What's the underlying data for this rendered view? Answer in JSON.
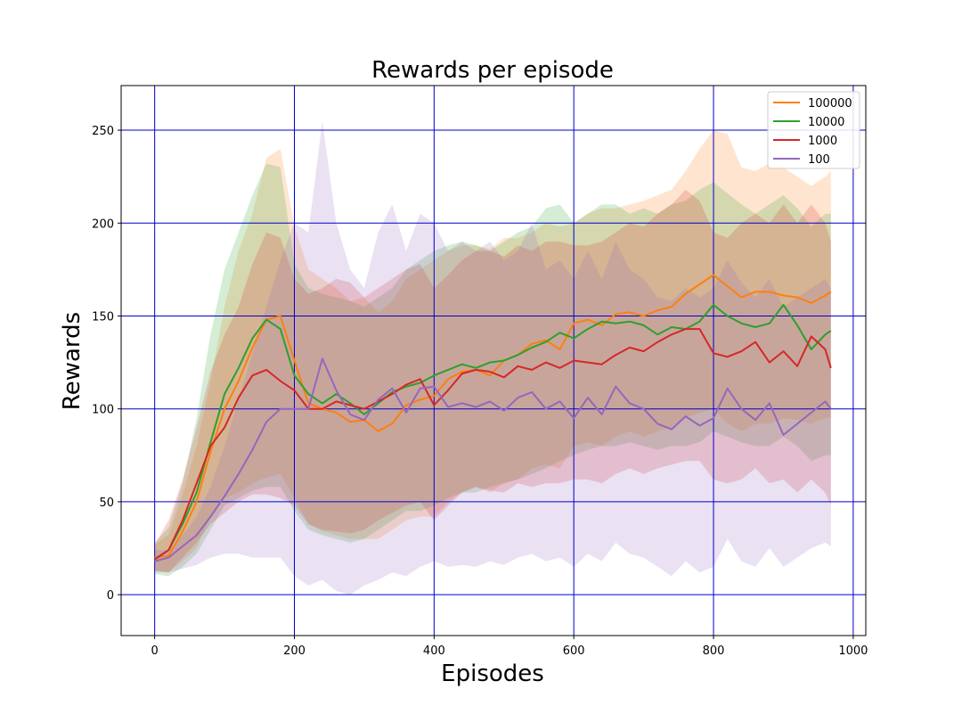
{
  "chart_data": {
    "type": "line",
    "title": "Rewards per episode",
    "xlabel": "Episodes",
    "ylabel": "Rewards",
    "xlim": [
      -48,
      1018
    ],
    "ylim": [
      -22,
      274
    ],
    "xticks": [
      0,
      200,
      400,
      600,
      800,
      1000
    ],
    "yticks": [
      0,
      50,
      100,
      150,
      200,
      250
    ],
    "grid": true,
    "grid_color": "#0000cc",
    "legend_position": "top-right",
    "series": [
      {
        "name": "100000",
        "color": "#ff7f0e",
        "x": [
          0,
          20,
          40,
          60,
          80,
          100,
          120,
          140,
          160,
          180,
          200,
          220,
          240,
          260,
          280,
          300,
          320,
          340,
          360,
          380,
          400,
          420,
          440,
          460,
          480,
          500,
          520,
          540,
          560,
          580,
          600,
          620,
          640,
          660,
          680,
          700,
          720,
          740,
          760,
          780,
          800,
          820,
          840,
          860,
          880,
          900,
          920,
          940,
          960,
          968
        ],
        "mean": [
          20,
          21,
          34,
          50,
          77,
          100,
          115,
          133,
          148,
          150,
          126,
          103,
          100,
          98,
          93,
          94,
          88,
          92,
          102,
          105,
          107,
          116,
          120,
          121,
          118,
          126,
          129,
          135,
          137,
          132,
          146,
          148,
          145,
          151,
          152,
          150,
          153,
          155,
          162,
          167,
          172,
          166,
          160,
          163,
          163,
          161,
          160,
          157,
          161,
          163
        ],
        "upper": [
          27,
          32,
          54,
          80,
          115,
          155,
          185,
          205,
          235,
          240,
          198,
          175,
          170,
          165,
          158,
          160,
          152,
          158,
          170,
          175,
          180,
          185,
          188,
          188,
          186,
          192,
          192,
          195,
          200,
          198,
          200,
          205,
          208,
          208,
          210,
          212,
          215,
          218,
          228,
          240,
          250,
          248,
          230,
          228,
          232,
          230,
          225,
          220,
          225,
          228
        ],
        "lower": [
          13,
          12,
          18,
          25,
          42,
          52,
          55,
          60,
          63,
          65,
          52,
          38,
          34,
          32,
          30,
          30,
          30,
          35,
          40,
          42,
          42,
          50,
          55,
          58,
          55,
          60,
          62,
          68,
          70,
          68,
          80,
          82,
          80,
          85,
          88,
          85,
          88,
          90,
          95,
          98,
          100,
          92,
          88,
          92,
          92,
          95,
          94,
          92,
          95,
          95
        ]
      },
      {
        "name": "10000",
        "color": "#2ca02c",
        "x": [
          0,
          20,
          40,
          60,
          80,
          100,
          120,
          140,
          160,
          180,
          200,
          220,
          240,
          260,
          280,
          300,
          320,
          340,
          360,
          380,
          400,
          420,
          440,
          460,
          480,
          500,
          520,
          540,
          560,
          580,
          600,
          620,
          640,
          660,
          680,
          700,
          720,
          740,
          760,
          780,
          800,
          820,
          840,
          860,
          880,
          900,
          920,
          940,
          960,
          968
        ],
        "mean": [
          19,
          24,
          38,
          55,
          82,
          108,
          122,
          138,
          148,
          143,
          118,
          108,
          103,
          108,
          103,
          97,
          103,
          109,
          112,
          114,
          118,
          121,
          124,
          122,
          125,
          126,
          129,
          133,
          136,
          141,
          138,
          143,
          147,
          146,
          147,
          145,
          140,
          144,
          143,
          147,
          156,
          150,
          146,
          144,
          146,
          156,
          145,
          132,
          140,
          142
        ],
        "upper": [
          28,
          36,
          60,
          95,
          140,
          175,
          195,
          215,
          232,
          230,
          178,
          165,
          162,
          160,
          158,
          155,
          160,
          165,
          175,
          180,
          185,
          188,
          190,
          188,
          185,
          190,
          195,
          198,
          208,
          210,
          200,
          205,
          210,
          210,
          205,
          208,
          205,
          210,
          212,
          218,
          222,
          216,
          210,
          205,
          210,
          215,
          208,
          198,
          205,
          205
        ],
        "lower": [
          11,
          10,
          15,
          22,
          35,
          48,
          52,
          56,
          58,
          58,
          45,
          35,
          32,
          30,
          28,
          30,
          35,
          40,
          45,
          45,
          48,
          52,
          55,
          55,
          58,
          60,
          62,
          65,
          68,
          72,
          75,
          78,
          80,
          80,
          82,
          80,
          78,
          80,
          80,
          82,
          88,
          85,
          82,
          80,
          80,
          85,
          80,
          72,
          75,
          75
        ]
      },
      {
        "name": "1000",
        "color": "#d62728",
        "x": [
          0,
          20,
          40,
          60,
          80,
          100,
          120,
          140,
          160,
          180,
          200,
          220,
          240,
          260,
          280,
          300,
          320,
          340,
          360,
          380,
          400,
          420,
          440,
          460,
          480,
          500,
          520,
          540,
          560,
          580,
          600,
          620,
          640,
          660,
          680,
          700,
          720,
          740,
          760,
          780,
          800,
          820,
          840,
          860,
          880,
          900,
          920,
          940,
          960,
          968
        ],
        "mean": [
          19,
          24,
          40,
          60,
          80,
          90,
          106,
          118,
          121,
          115,
          110,
          100,
          100,
          104,
          102,
          100,
          104,
          108,
          113,
          116,
          102,
          110,
          119,
          121,
          120,
          117,
          123,
          121,
          125,
          122,
          126,
          125,
          124,
          129,
          133,
          131,
          136,
          140,
          143,
          143,
          130,
          128,
          131,
          136,
          125,
          131,
          123,
          139,
          132,
          122
        ],
        "upper": [
          27,
          40,
          62,
          90,
          120,
          140,
          155,
          178,
          195,
          192,
          170,
          162,
          165,
          170,
          168,
          160,
          165,
          170,
          175,
          178,
          165,
          172,
          180,
          185,
          185,
          182,
          188,
          185,
          190,
          190,
          188,
          188,
          190,
          195,
          200,
          198,
          205,
          210,
          218,
          212,
          195,
          192,
          200,
          205,
          200,
          210,
          200,
          210,
          200,
          190
        ],
        "lower": [
          13,
          12,
          20,
          28,
          38,
          44,
          50,
          54,
          54,
          52,
          48,
          38,
          35,
          34,
          33,
          35,
          40,
          44,
          48,
          50,
          40,
          48,
          55,
          58,
          56,
          55,
          60,
          58,
          60,
          60,
          62,
          62,
          60,
          65,
          68,
          65,
          68,
          70,
          72,
          72,
          62,
          60,
          62,
          68,
          60,
          62,
          55,
          62,
          55,
          48
        ]
      },
      {
        "name": "100",
        "color": "#9467bd",
        "x": [
          0,
          20,
          40,
          60,
          80,
          100,
          120,
          140,
          160,
          180,
          200,
          220,
          240,
          260,
          280,
          300,
          320,
          340,
          360,
          380,
          400,
          420,
          440,
          460,
          480,
          500,
          520,
          540,
          560,
          580,
          600,
          620,
          640,
          660,
          680,
          700,
          720,
          740,
          760,
          780,
          800,
          820,
          840,
          860,
          880,
          900,
          920,
          940,
          960,
          968
        ],
        "mean": [
          18,
          20,
          26,
          32,
          42,
          53,
          65,
          78,
          93,
          100,
          100,
          100,
          127,
          110,
          97,
          94,
          105,
          111,
          98,
          111,
          112,
          101,
          103,
          101,
          104,
          99,
          106,
          109,
          100,
          104,
          95,
          106,
          97,
          112,
          103,
          100,
          92,
          89,
          96,
          91,
          95,
          111,
          100,
          94,
          103,
          86,
          92,
          98,
          104,
          100
        ],
        "upper": [
          24,
          24,
          32,
          42,
          58,
          80,
          105,
          130,
          155,
          180,
          200,
          195,
          255,
          200,
          175,
          165,
          195,
          210,
          185,
          205,
          200,
          185,
          190,
          185,
          190,
          180,
          185,
          200,
          175,
          180,
          170,
          185,
          170,
          190,
          175,
          170,
          160,
          158,
          165,
          160,
          165,
          180,
          168,
          160,
          170,
          155,
          160,
          165,
          170,
          165
        ],
        "lower": [
          12,
          12,
          14,
          16,
          20,
          22,
          22,
          20,
          20,
          20,
          10,
          5,
          8,
          2,
          0,
          5,
          8,
          12,
          10,
          15,
          18,
          15,
          16,
          15,
          18,
          16,
          20,
          22,
          18,
          20,
          15,
          22,
          18,
          28,
          22,
          20,
          15,
          10,
          18,
          12,
          15,
          30,
          18,
          15,
          25,
          15,
          20,
          25,
          28,
          26
        ]
      }
    ]
  }
}
